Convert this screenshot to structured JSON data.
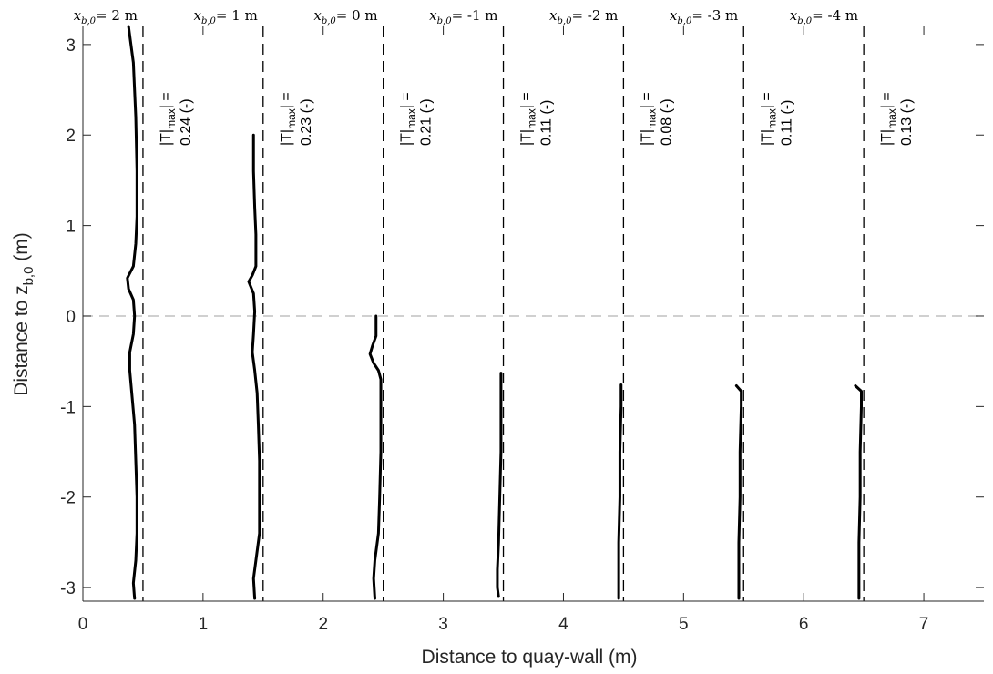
{
  "chart_data": {
    "type": "line",
    "xlabel": "Distance to quay-wall (m)",
    "ylabel_main": "Distance to z",
    "ylabel_sub": "b,0",
    "ylabel_suffix": " (m)",
    "xlim": [
      0,
      7.5
    ],
    "ylim": [
      -3.15,
      3.2
    ],
    "xticks": [
      0,
      1,
      2,
      3,
      4,
      5,
      6,
      7
    ],
    "yticks": [
      -3,
      -2,
      -1,
      0,
      1,
      2,
      3
    ],
    "grid": false,
    "zero_line": {
      "y": 0,
      "style": "dashed",
      "color": "#b3b3b3"
    },
    "colors": {
      "profile": "#000000",
      "wall_line": "#000000",
      "zero_line": "#b3b3b3",
      "axis": "#262626"
    },
    "series": [
      {
        "top_label": "= 2 m",
        "wall_x": 0.5,
        "annotation_line1_prefix": "|T|",
        "annotation_line1_sub": "max",
        "annotation_line1_suffix": "| =",
        "annotation_line2": "0.24 (-)",
        "points": [
          [
            0.38,
            3.2
          ],
          [
            0.42,
            2.8
          ],
          [
            0.44,
            2.2
          ],
          [
            0.45,
            1.6
          ],
          [
            0.45,
            1.1
          ],
          [
            0.44,
            0.8
          ],
          [
            0.42,
            0.55
          ],
          [
            0.37,
            0.42
          ],
          [
            0.38,
            0.3
          ],
          [
            0.42,
            0.18
          ],
          [
            0.43,
            0.0
          ],
          [
            0.42,
            -0.2
          ],
          [
            0.39,
            -0.4
          ],
          [
            0.39,
            -0.6
          ],
          [
            0.41,
            -0.9
          ],
          [
            0.43,
            -1.2
          ],
          [
            0.44,
            -1.6
          ],
          [
            0.45,
            -2.0
          ],
          [
            0.45,
            -2.4
          ],
          [
            0.44,
            -2.7
          ],
          [
            0.42,
            -2.95
          ],
          [
            0.43,
            -3.12
          ]
        ]
      },
      {
        "top_label": "= 1 m",
        "wall_x": 1.5,
        "annotation_line1_prefix": "|T|",
        "annotation_line1_sub": "max",
        "annotation_line1_suffix": "| =",
        "annotation_line2": "0.23 (-)",
        "points": [
          [
            1.42,
            2.0
          ],
          [
            1.42,
            1.6
          ],
          [
            1.43,
            1.2
          ],
          [
            1.44,
            0.9
          ],
          [
            1.44,
            0.55
          ],
          [
            1.41,
            0.45
          ],
          [
            1.38,
            0.38
          ],
          [
            1.42,
            0.25
          ],
          [
            1.43,
            0.05
          ],
          [
            1.42,
            -0.2
          ],
          [
            1.41,
            -0.4
          ],
          [
            1.43,
            -0.6
          ],
          [
            1.45,
            -0.85
          ],
          [
            1.46,
            -1.2
          ],
          [
            1.47,
            -1.6
          ],
          [
            1.47,
            -2.0
          ],
          [
            1.47,
            -2.4
          ],
          [
            1.44,
            -2.7
          ],
          [
            1.42,
            -2.9
          ],
          [
            1.43,
            -3.12
          ]
        ]
      },
      {
        "top_label": "= 0 m",
        "wall_x": 2.5,
        "annotation_line1_prefix": "|T|",
        "annotation_line1_sub": "max",
        "annotation_line1_suffix": "| =",
        "annotation_line2": "0.21 (-)",
        "points": [
          [
            2.44,
            0.0
          ],
          [
            2.44,
            -0.22
          ],
          [
            2.41,
            -0.33
          ],
          [
            2.39,
            -0.42
          ],
          [
            2.42,
            -0.52
          ],
          [
            2.46,
            -0.6
          ],
          [
            2.48,
            -0.7
          ],
          [
            2.48,
            -1.0
          ],
          [
            2.48,
            -1.5
          ],
          [
            2.47,
            -2.0
          ],
          [
            2.46,
            -2.4
          ],
          [
            2.43,
            -2.7
          ],
          [
            2.42,
            -2.9
          ],
          [
            2.43,
            -3.12
          ]
        ]
      },
      {
        "top_label": "= -1 m",
        "wall_x": 3.5,
        "annotation_line1_prefix": "|T|",
        "annotation_line1_sub": "max",
        "annotation_line1_suffix": "| =",
        "annotation_line2": "0.11 (-)",
        "points": [
          [
            3.48,
            -0.63
          ],
          [
            3.48,
            -1.0
          ],
          [
            3.48,
            -1.5
          ],
          [
            3.47,
            -2.0
          ],
          [
            3.46,
            -2.5
          ],
          [
            3.45,
            -2.8
          ],
          [
            3.45,
            -3.0
          ],
          [
            3.46,
            -3.1
          ]
        ]
      },
      {
        "top_label": "= -2 m",
        "wall_x": 4.5,
        "annotation_line1_prefix": "|T|",
        "annotation_line1_sub": "max",
        "annotation_line1_suffix": "| =",
        "annotation_line2": "0.08 (-)",
        "points": [
          [
            4.48,
            -0.76
          ],
          [
            4.48,
            -1.0
          ],
          [
            4.47,
            -1.5
          ],
          [
            4.47,
            -2.0
          ],
          [
            4.46,
            -2.5
          ],
          [
            4.46,
            -2.9
          ],
          [
            4.46,
            -3.12
          ]
        ]
      },
      {
        "top_label": "= -3 m",
        "wall_x": 5.5,
        "annotation_line1_prefix": "|T|",
        "annotation_line1_sub": "max",
        "annotation_line1_suffix": "| =",
        "annotation_line2": "0.11 (-)",
        "points": [
          [
            5.44,
            -0.77
          ],
          [
            5.48,
            -0.83
          ],
          [
            5.48,
            -1.0
          ],
          [
            5.47,
            -1.5
          ],
          [
            5.47,
            -2.0
          ],
          [
            5.46,
            -2.5
          ],
          [
            5.46,
            -2.9
          ],
          [
            5.46,
            -3.12
          ]
        ]
      },
      {
        "top_label": "= -4 m",
        "wall_x": 6.5,
        "annotation_line1_prefix": "|T|",
        "annotation_line1_sub": "max",
        "annotation_line1_suffix": "| =",
        "annotation_line2": "0.13 (-)",
        "points": [
          [
            6.43,
            -0.77
          ],
          [
            6.48,
            -0.83
          ],
          [
            6.48,
            -1.0
          ],
          [
            6.47,
            -1.5
          ],
          [
            6.47,
            -2.0
          ],
          [
            6.46,
            -2.5
          ],
          [
            6.46,
            -2.9
          ],
          [
            6.46,
            -3.12
          ]
        ]
      }
    ],
    "top_label_var": "x",
    "top_label_sub": "b,0"
  }
}
